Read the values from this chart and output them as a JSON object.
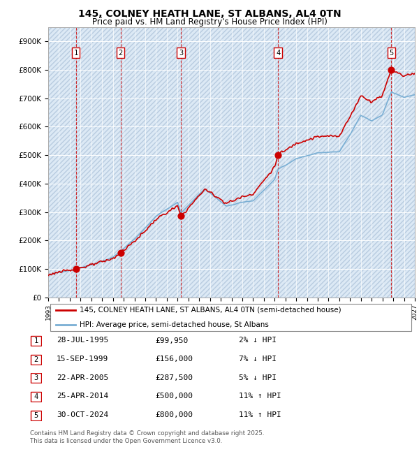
{
  "title": "145, COLNEY HEATH LANE, ST ALBANS, AL4 0TN",
  "subtitle": "Price paid vs. HM Land Registry's House Price Index (HPI)",
  "ylim": [
    0,
    950000
  ],
  "yticks": [
    0,
    100000,
    200000,
    300000,
    400000,
    500000,
    600000,
    700000,
    800000,
    900000
  ],
  "ytick_labels": [
    "£0",
    "£100K",
    "£200K",
    "£300K",
    "£400K",
    "£500K",
    "£600K",
    "£700K",
    "£800K",
    "£900K"
  ],
  "xlim_start": 1993.0,
  "xlim_end": 2027.0,
  "hpi_color": "#7aafd4",
  "price_color": "#cc0000",
  "background_color": "#dce9f5",
  "sale_dates_decimal": [
    1995.57,
    1999.71,
    2005.31,
    2014.32,
    2024.83
  ],
  "sale_prices": [
    99950,
    156000,
    287500,
    500000,
    800000
  ],
  "sale_labels": [
    "1",
    "2",
    "3",
    "4",
    "5"
  ],
  "legend_line1": "145, COLNEY HEATH LANE, ST ALBANS, AL4 0TN (semi-detached house)",
  "legend_line2": "HPI: Average price, semi-detached house, St Albans",
  "table_rows": [
    [
      "1",
      "28-JUL-1995",
      "£99,950",
      "2% ↓ HPI"
    ],
    [
      "2",
      "15-SEP-1999",
      "£156,000",
      "7% ↓ HPI"
    ],
    [
      "3",
      "22-APR-2005",
      "£287,500",
      "5% ↓ HPI"
    ],
    [
      "4",
      "25-APR-2014",
      "£500,000",
      "11% ↑ HPI"
    ],
    [
      "5",
      "30-OCT-2024",
      "£800,000",
      "11% ↑ HPI"
    ]
  ],
  "footer": "Contains HM Land Registry data © Crown copyright and database right 2025.\nThis data is licensed under the Open Government Licence v3.0.",
  "vline_dates": [
    1995.57,
    1999.71,
    2005.31,
    2014.32,
    2024.83
  ]
}
